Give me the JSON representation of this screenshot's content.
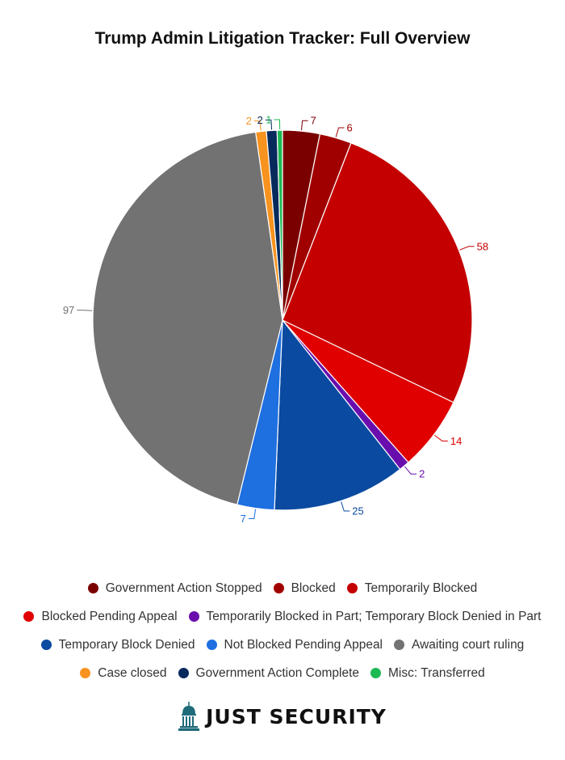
{
  "chart_data": {
    "type": "pie",
    "title": "Trump Admin Litigation Tracker: Full Overview",
    "start_angle_deg": 0,
    "direction": "clockwise",
    "slices": [
      {
        "name": "Government Action Stopped",
        "value": 7,
        "color": "#7a0000",
        "label": "7"
      },
      {
        "name": "Blocked",
        "value": 6,
        "color": "#a00000",
        "label": "6"
      },
      {
        "name": "Temporarily Blocked",
        "value": 58,
        "color": "#c40000",
        "label": "58"
      },
      {
        "name": "Blocked Pending Appeal",
        "value": 14,
        "color": "#e00000",
        "label": "14"
      },
      {
        "name": "Temporarily Blocked in Part; Temporary Block Denied in Part",
        "value": 2,
        "color": "#6a0dad",
        "label": "2"
      },
      {
        "name": "Temporary Block Denied",
        "value": 25,
        "color": "#0a4aa0",
        "label": "25"
      },
      {
        "name": "Not Blocked Pending Appeal",
        "value": 7,
        "color": "#1e6fe0",
        "label": "7"
      },
      {
        "name": "Awaiting court ruling",
        "value": 97,
        "color": "#727272",
        "label": "97"
      },
      {
        "name": "Case closed",
        "value": 2,
        "color": "#f7931e",
        "label": "2"
      },
      {
        "name": "Government Action Complete",
        "value": 2,
        "color": "#062a5c",
        "label": "2"
      },
      {
        "name": "Misc: Transferred",
        "value": 1,
        "color": "#1db954",
        "label": "1"
      }
    ],
    "legend_placement": "bottom"
  },
  "legend_rows": [
    [
      0,
      1,
      2
    ],
    [
      3,
      4
    ],
    [
      5,
      6,
      7
    ],
    [
      8,
      9,
      10
    ]
  ],
  "brand": {
    "name": "JUST SECURITY",
    "icon": "capitol-dome-icon",
    "color": "#1f6b7a"
  }
}
